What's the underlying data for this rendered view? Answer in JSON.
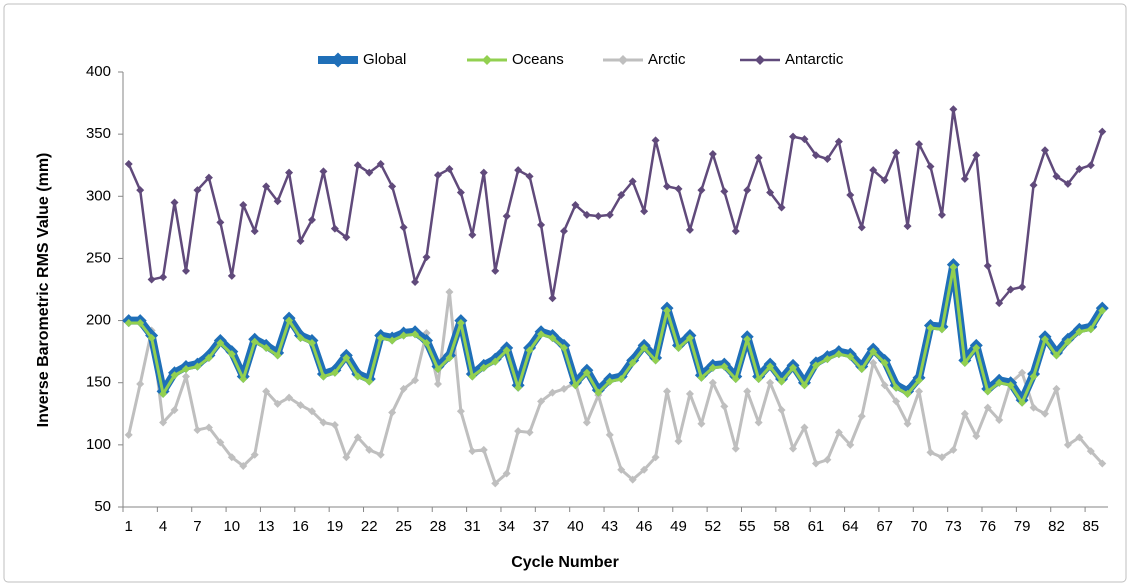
{
  "chart_data": {
    "type": "line",
    "x_label": "Cycle Number",
    "y_label": "Inverse Barometric RMS Value (mm)",
    "categories": [
      1,
      null,
      null,
      4,
      null,
      null,
      7,
      null,
      null,
      10,
      null,
      null,
      13,
      null,
      null,
      16,
      null,
      null,
      19,
      null,
      null,
      22,
      null,
      null,
      25,
      null,
      null,
      28,
      null,
      null,
      31,
      null,
      null,
      34,
      null,
      null,
      37,
      null,
      null,
      40,
      null,
      null,
      43,
      null,
      null,
      46,
      null,
      null,
      49,
      null,
      null,
      52,
      null,
      null,
      55,
      null,
      null,
      58,
      null,
      null,
      61,
      null,
      null,
      64,
      null,
      null,
      67,
      null,
      null,
      70,
      null,
      null,
      73,
      null,
      null,
      76,
      null,
      null,
      79,
      null,
      null,
      82,
      null,
      null,
      85,
      null
    ],
    "ylim": [
      50,
      400
    ],
    "yticks": [
      50,
      100,
      150,
      200,
      250,
      300,
      350,
      400
    ],
    "grid": false,
    "legend": "top",
    "series": [
      {
        "name": "Global",
        "color": "#1f6fb8",
        "values": [
          200,
          200,
          188,
          143,
          158,
          163,
          165,
          172,
          184,
          175,
          155,
          185,
          180,
          174,
          202,
          188,
          184,
          157,
          160,
          172,
          157,
          153,
          188,
          186,
          190,
          191,
          184,
          163,
          172,
          200,
          157,
          164,
          169,
          178,
          148,
          178,
          191,
          188,
          180,
          150,
          160,
          144,
          153,
          155,
          168,
          180,
          170,
          210,
          180,
          188,
          156,
          164,
          165,
          155,
          187,
          155,
          165,
          153,
          164,
          150,
          166,
          171,
          175,
          173,
          163,
          177,
          168,
          148,
          143,
          154,
          196,
          195,
          245,
          168,
          180,
          145,
          152,
          150,
          136,
          157,
          187,
          174,
          185,
          193,
          195,
          210
        ]
      },
      {
        "name": "Oceans",
        "color": "#92d050",
        "values": [
          198,
          198,
          186,
          141,
          156,
          161,
          163,
          170,
          182,
          173,
          153,
          183,
          178,
          172,
          200,
          186,
          182,
          155,
          158,
          170,
          155,
          151,
          186,
          184,
          188,
          189,
          182,
          161,
          170,
          198,
          155,
          162,
          167,
          176,
          146,
          176,
          189,
          186,
          178,
          148,
          158,
          142,
          151,
          153,
          166,
          178,
          168,
          208,
          178,
          186,
          154,
          162,
          163,
          153,
          185,
          153,
          163,
          151,
          162,
          148,
          164,
          169,
          173,
          171,
          161,
          175,
          166,
          146,
          141,
          152,
          194,
          193,
          243,
          166,
          178,
          143,
          150,
          148,
          134,
          155,
          185,
          172,
          183,
          191,
          193,
          208
        ]
      },
      {
        "name": "Arctic",
        "color": "#bfbfbf",
        "values": [
          108,
          149,
          192,
          118,
          128,
          155,
          112,
          114,
          102,
          90,
          83,
          92,
          143,
          133,
          138,
          132,
          127,
          118,
          116,
          90,
          106,
          96,
          92,
          126,
          145,
          152,
          190,
          149,
          223,
          127,
          95,
          96,
          69,
          77,
          111,
          110,
          135,
          142,
          145,
          150,
          118,
          140,
          108,
          80,
          72,
          80,
          90,
          143,
          103,
          141,
          117,
          150,
          131,
          97,
          143,
          118,
          150,
          128,
          97,
          114,
          85,
          88,
          110,
          100,
          123,
          166,
          148,
          135,
          117,
          143,
          94,
          90,
          96,
          125,
          107,
          130,
          120,
          150,
          158,
          130,
          125,
          145,
          100,
          106,
          95,
          85
        ]
      },
      {
        "name": "Antarctic",
        "color": "#604a7b",
        "values": [
          326,
          305,
          233,
          235,
          295,
          240,
          305,
          315,
          279,
          236,
          293,
          272,
          308,
          296,
          319,
          264,
          281,
          320,
          274,
          267,
          325,
          319,
          326,
          308,
          275,
          231,
          251,
          317,
          322,
          303,
          269,
          319,
          240,
          284,
          321,
          316,
          277,
          218,
          272,
          293,
          285,
          284,
          285,
          301,
          312,
          288,
          345,
          308,
          306,
          273,
          305,
          334,
          304,
          272,
          305,
          331,
          303,
          291,
          348,
          346,
          333,
          330,
          344,
          301,
          275,
          321,
          313,
          335,
          276,
          342,
          324,
          285,
          370,
          314,
          333,
          244,
          214,
          225,
          227,
          309,
          337,
          316,
          310,
          322,
          325,
          352
        ]
      }
    ]
  }
}
